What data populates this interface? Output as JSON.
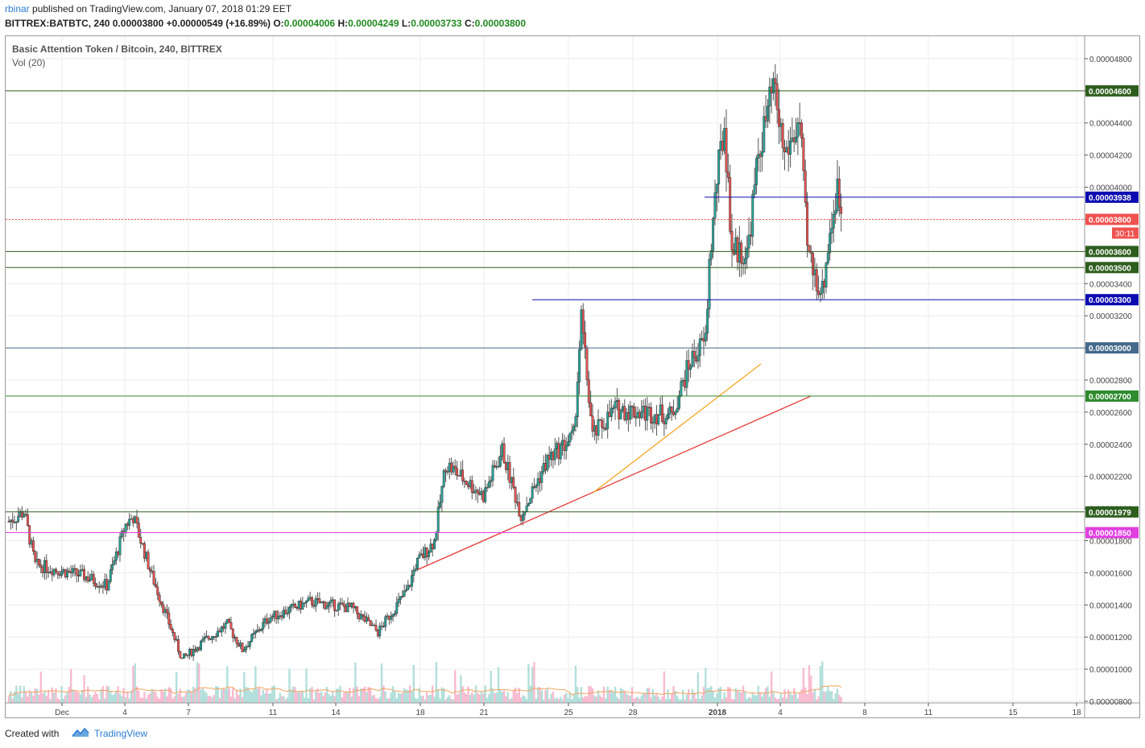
{
  "header": {
    "user": "rbinar",
    "published_text": "published on TradingView.com, January 07, 2018 01:29 EET",
    "symbol_line": "BITTREX:BATBTC, 240",
    "last": "0.00003800",
    "change": "+0.00000549 (+16.89%)",
    "o_label": "O:",
    "o_value": "0.00004006",
    "h_label": "H:",
    "h_value": "0.00004249",
    "l_label": "L:",
    "l_value": "0.00003733",
    "c_label": "C:",
    "c_value": "0.00003800"
  },
  "footer": {
    "created_with": "Created with",
    "brand": "TradingView"
  },
  "colors": {
    "up": "#26a69a",
    "down": "#ef5350",
    "vol_up": "#b2dfdb",
    "vol_down": "#f8bbd0",
    "ma": "#f4a460",
    "grid": "#ececec",
    "dark_green": "#2e5e1e",
    "blue": "#0b0bb0",
    "steel": "#456a8c",
    "green": "#2e8b2e",
    "magenta": "#e040e0",
    "red_line": "#e53935",
    "orange_line": "#f5a623"
  },
  "chart_data": {
    "type": "candlestick",
    "title": "Basic Attention Token / Bitcoin, 240, BITTREX",
    "volume_label": "Vol (20)",
    "x_ticks": [
      "Dec",
      "4",
      "7",
      "11",
      "14",
      "18",
      "21",
      "25",
      "28",
      "2018",
      "4",
      "8",
      "11",
      "15",
      "18"
    ],
    "y_ticks": [
      "0.00000800",
      "0.00001000",
      "0.00001200",
      "0.00001400",
      "0.00001600",
      "0.00001800",
      "0.00002000",
      "0.00002200",
      "0.00002400",
      "0.00002600",
      "0.00002800",
      "0.00003000",
      "0.00003200",
      "0.00003400",
      "0.00003600",
      "0.00003800",
      "0.00004000",
      "0.00004200",
      "0.00004400",
      "0.00004600",
      "0.00004800"
    ],
    "y_range": [
      7.9e-06,
      4.94e-05
    ],
    "horizontal_levels": [
      {
        "label": "0.00004600",
        "value": 4.6e-05,
        "color": "dark_green"
      },
      {
        "label": "0.00003938",
        "value": 3.938e-05,
        "color": "blue"
      },
      {
        "label": "0.00003800",
        "value": 3.8e-05,
        "color": "last"
      },
      {
        "label": "0.00003600",
        "value": 3.6e-05,
        "color": "dark_green"
      },
      {
        "label": "0.00003500",
        "value": 3.5e-05,
        "color": "dark_green"
      },
      {
        "label": "0.00003300",
        "value": 3.3e-05,
        "color": "blue"
      },
      {
        "label": "0.00003000",
        "value": 3e-05,
        "color": "steel"
      },
      {
        "label": "0.00002700",
        "value": 2.7e-05,
        "color": "green"
      },
      {
        "label": "0.00001979",
        "value": 1.979e-05,
        "color": "dark_green"
      },
      {
        "label": "0.00001850",
        "value": 1.85e-05,
        "color": "magenta"
      }
    ],
    "countdown": "30:11",
    "key_points": [
      {
        "date": "Nov 29",
        "price": 1.92e-05
      },
      {
        "date": "Dec 7",
        "price": 1.06e-05
      },
      {
        "date": "Dec 11",
        "price": 1.12e-05
      },
      {
        "date": "Dec 18",
        "price": 1.62e-05
      },
      {
        "date": "Dec 21",
        "price": 2.36e-05
      },
      {
        "date": "Dec 22",
        "price": 1.92e-05
      },
      {
        "date": "Dec 25",
        "price": 3.18e-05
      },
      {
        "date": "Dec 26",
        "price": 2.38e-05
      },
      {
        "date": "Dec 30",
        "price": 2.72e-05
      },
      {
        "date": "Jan 1",
        "price": 2.92e-05
      },
      {
        "date": "Jan 2",
        "price": 4.38e-05
      },
      {
        "date": "Jan 3",
        "price": 3.52e-05
      },
      {
        "date": "Jan 4",
        "price": 4.62e-05
      },
      {
        "date": "Jan 5",
        "price": 3.65e-05
      },
      {
        "date": "Jan 6",
        "price": 3.35e-05
      },
      {
        "date": "Jan 6",
        "price": 3.98e-05
      },
      {
        "date": "Jan 7",
        "price": 3.8e-05
      }
    ]
  }
}
